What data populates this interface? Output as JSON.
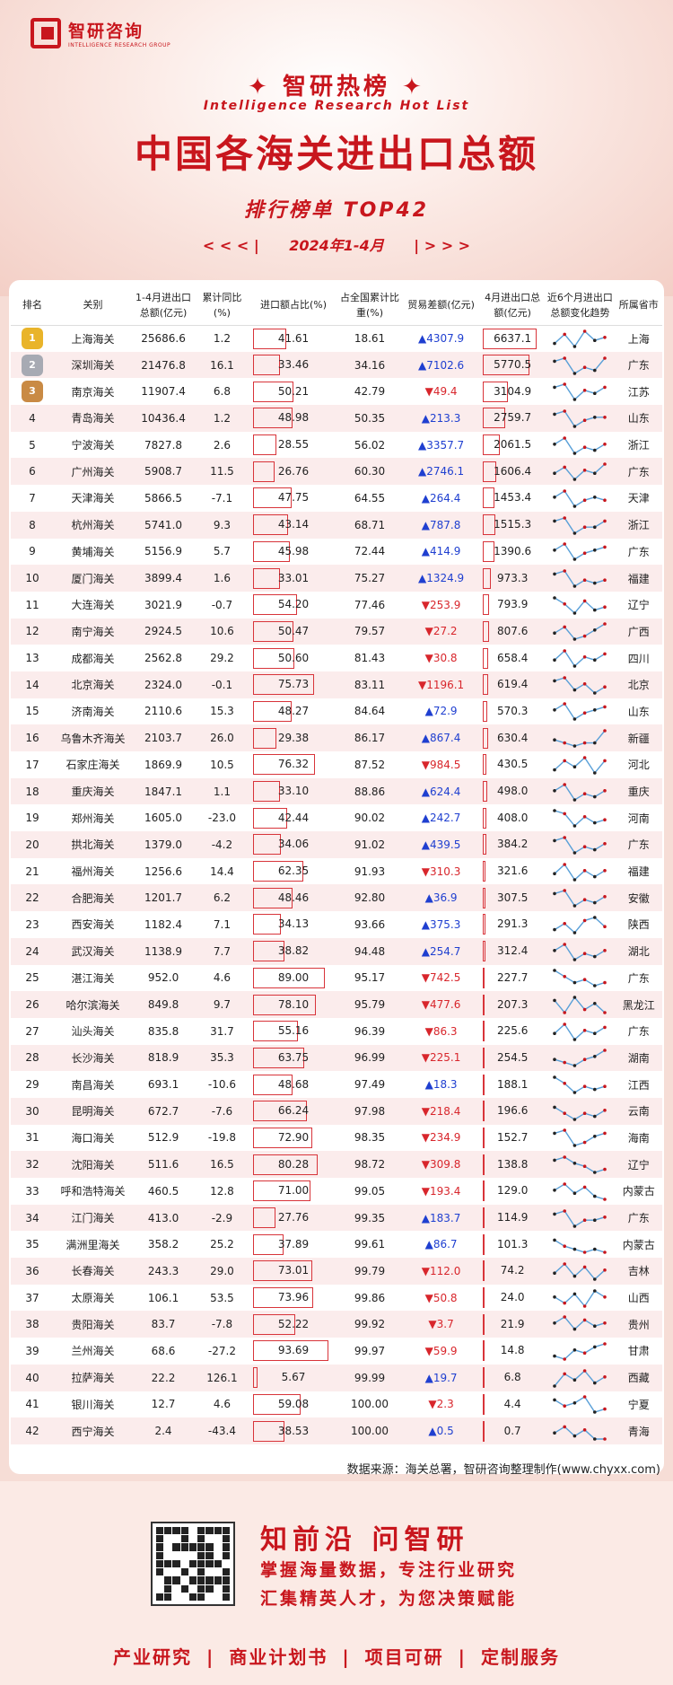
{
  "brand": {
    "name_cn": "智研咨询",
    "name_en": "INTELLIGENCE RESEARCH GROUP"
  },
  "header": {
    "hot_list": "✦ 智研热榜 ✦",
    "hot_list_en": "Intelligence Research Hot List",
    "title": "中国各海关进出口总额",
    "subtitle": "排行榜单  TOP42",
    "prev": "< < <  |",
    "period": "2024年1-4月",
    "next": "|  > > >"
  },
  "table": {
    "headers": [
      "排名",
      "关别",
      "1-4月进出口总额(亿元)",
      "累计同比(%)",
      "进口额占比(%)",
      "占全国累计比重(%)",
      "贸易差额(亿元)",
      "4月进出口总额(亿元)",
      "近6个月进出口总额变化趋势",
      "所属省市"
    ],
    "rows": [
      {
        "rank": "1",
        "name": "上海海关",
        "total": "25686.6",
        "yoy": "1.2",
        "imp": "41.61",
        "share": "18.61",
        "bal": "▲4307.9",
        "apr": "6637.1",
        "prov": "上海",
        "trend": [
          2,
          5,
          1,
          6,
          3,
          4
        ]
      },
      {
        "rank": "2",
        "name": "深圳海关",
        "total": "21476.8",
        "yoy": "16.1",
        "imp": "33.46",
        "share": "34.16",
        "bal": "▲7102.6",
        "apr": "5770.5",
        "prov": "广东",
        "trend": [
          5,
          6,
          1,
          3,
          2,
          6
        ]
      },
      {
        "rank": "3",
        "name": "南京海关",
        "total": "11907.4",
        "yoy": "6.8",
        "imp": "50.21",
        "share": "42.79",
        "bal": "▼49.4",
        "apr": "3104.9",
        "prov": "江苏",
        "trend": [
          5,
          6,
          1,
          4,
          3,
          5
        ]
      },
      {
        "rank": "4",
        "name": "青岛海关",
        "total": "10436.4",
        "yoy": "1.2",
        "imp": "48.98",
        "share": "50.35",
        "bal": "▲213.3",
        "apr": "2759.7",
        "prov": "山东",
        "trend": [
          5,
          6,
          1,
          3,
          4,
          4
        ]
      },
      {
        "rank": "5",
        "name": "宁波海关",
        "total": "7827.8",
        "yoy": "2.6",
        "imp": "28.55",
        "share": "56.02",
        "bal": "▲3357.7",
        "apr": "2061.5",
        "prov": "浙江",
        "trend": [
          4,
          6,
          1,
          3,
          2,
          4
        ]
      },
      {
        "rank": "6",
        "name": "广州海关",
        "total": "5908.7",
        "yoy": "11.5",
        "imp": "26.76",
        "share": "60.30",
        "bal": "▲2746.1",
        "apr": "1606.4",
        "prov": "广东",
        "trend": [
          3,
          5,
          1,
          4,
          3,
          6
        ]
      },
      {
        "rank": "7",
        "name": "天津海关",
        "total": "5866.5",
        "yoy": "-7.1",
        "imp": "47.75",
        "share": "64.55",
        "bal": "▲264.4",
        "apr": "1453.4",
        "prov": "天津",
        "trend": [
          4,
          6,
          1,
          3,
          4,
          3
        ]
      },
      {
        "rank": "8",
        "name": "杭州海关",
        "total": "5741.0",
        "yoy": "9.3",
        "imp": "43.14",
        "share": "68.71",
        "bal": "▲787.8",
        "apr": "1515.3",
        "prov": "浙江",
        "trend": [
          5,
          6,
          1,
          3,
          3,
          5
        ]
      },
      {
        "rank": "9",
        "name": "黄埔海关",
        "total": "5156.9",
        "yoy": "5.7",
        "imp": "45.98",
        "share": "72.44",
        "bal": "▲414.9",
        "apr": "1390.6",
        "prov": "广东",
        "trend": [
          4,
          6,
          1,
          3,
          4,
          5
        ]
      },
      {
        "rank": "10",
        "name": "厦门海关",
        "total": "3899.4",
        "yoy": "1.6",
        "imp": "33.01",
        "share": "75.27",
        "bal": "▲1324.9",
        "apr": "973.3",
        "prov": "福建",
        "trend": [
          5,
          6,
          1,
          3,
          2,
          3
        ]
      },
      {
        "rank": "11",
        "name": "大连海关",
        "total": "3021.9",
        "yoy": "-0.7",
        "imp": "54.20",
        "share": "77.46",
        "bal": "▼253.9",
        "apr": "793.9",
        "prov": "辽宁",
        "trend": [
          6,
          4,
          1,
          5,
          2,
          3
        ]
      },
      {
        "rank": "12",
        "name": "南宁海关",
        "total": "2924.5",
        "yoy": "10.6",
        "imp": "50.47",
        "share": "79.57",
        "bal": "▼27.2",
        "apr": "807.6",
        "prov": "广西",
        "trend": [
          3,
          5,
          1,
          2,
          4,
          6
        ]
      },
      {
        "rank": "13",
        "name": "成都海关",
        "total": "2562.8",
        "yoy": "29.2",
        "imp": "50.60",
        "share": "81.43",
        "bal": "▼30.8",
        "apr": "658.4",
        "prov": "四川",
        "trend": [
          3,
          6,
          1,
          4,
          3,
          5
        ]
      },
      {
        "rank": "14",
        "name": "北京海关",
        "total": "2324.0",
        "yoy": "-0.1",
        "imp": "75.73",
        "share": "83.11",
        "bal": "▼1196.1",
        "apr": "619.4",
        "prov": "北京",
        "trend": [
          5,
          6,
          2,
          4,
          1,
          3
        ]
      },
      {
        "rank": "15",
        "name": "济南海关",
        "total": "2110.6",
        "yoy": "15.3",
        "imp": "48.27",
        "share": "84.64",
        "bal": "▲72.9",
        "apr": "570.3",
        "prov": "山东",
        "trend": [
          4,
          6,
          1,
          3,
          4,
          5
        ]
      },
      {
        "rank": "16",
        "name": "乌鲁木齐海关",
        "total": "2103.7",
        "yoy": "26.0",
        "imp": "29.38",
        "share": "86.17",
        "bal": "▲867.4",
        "apr": "630.4",
        "prov": "新疆",
        "trend": [
          3,
          2,
          1,
          2,
          2,
          6
        ]
      },
      {
        "rank": "17",
        "name": "石家庄海关",
        "total": "1869.9",
        "yoy": "10.5",
        "imp": "76.32",
        "share": "87.52",
        "bal": "▼984.5",
        "apr": "430.5",
        "prov": "河北",
        "trend": [
          2,
          5,
          3,
          6,
          1,
          5
        ]
      },
      {
        "rank": "18",
        "name": "重庆海关",
        "total": "1847.1",
        "yoy": "1.1",
        "imp": "33.10",
        "share": "88.86",
        "bal": "▲624.4",
        "apr": "498.0",
        "prov": "重庆",
        "trend": [
          4,
          6,
          1,
          3,
          2,
          4
        ]
      },
      {
        "rank": "19",
        "name": "郑州海关",
        "total": "1605.0",
        "yoy": "-23.0",
        "imp": "42.44",
        "share": "90.02",
        "bal": "▲242.7",
        "apr": "408.0",
        "prov": "河南",
        "trend": [
          6,
          5,
          1,
          4,
          2,
          3
        ]
      },
      {
        "rank": "20",
        "name": "拱北海关",
        "total": "1379.0",
        "yoy": "-4.2",
        "imp": "34.06",
        "share": "91.02",
        "bal": "▲439.5",
        "apr": "384.2",
        "prov": "广东",
        "trend": [
          5,
          6,
          1,
          3,
          2,
          4
        ]
      },
      {
        "rank": "21",
        "name": "福州海关",
        "total": "1256.6",
        "yoy": "14.4",
        "imp": "62.35",
        "share": "91.93",
        "bal": "▼310.3",
        "apr": "321.6",
        "prov": "福建",
        "trend": [
          3,
          6,
          1,
          4,
          2,
          4
        ]
      },
      {
        "rank": "22",
        "name": "合肥海关",
        "total": "1201.7",
        "yoy": "6.2",
        "imp": "48.46",
        "share": "92.80",
        "bal": "▲36.9",
        "apr": "307.5",
        "prov": "安徽",
        "trend": [
          5,
          6,
          1,
          3,
          2,
          4
        ]
      },
      {
        "rank": "23",
        "name": "西安海关",
        "total": "1182.4",
        "yoy": "7.1",
        "imp": "34.13",
        "share": "93.66",
        "bal": "▲375.3",
        "apr": "291.3",
        "prov": "陕西",
        "trend": [
          2,
          4,
          1,
          5,
          6,
          3
        ]
      },
      {
        "rank": "24",
        "name": "武汉海关",
        "total": "1138.9",
        "yoy": "7.7",
        "imp": "38.82",
        "share": "94.48",
        "bal": "▲254.7",
        "apr": "312.4",
        "prov": "湖北",
        "trend": [
          4,
          6,
          1,
          3,
          2,
          4
        ]
      },
      {
        "rank": "25",
        "name": "湛江海关",
        "total": "952.0",
        "yoy": "4.6",
        "imp": "89.00",
        "share": "95.17",
        "bal": "▼742.5",
        "apr": "227.7",
        "prov": "广东",
        "trend": [
          6,
          4,
          2,
          3,
          1,
          2
        ]
      },
      {
        "rank": "26",
        "name": "哈尔滨海关",
        "total": "849.8",
        "yoy": "9.7",
        "imp": "78.10",
        "share": "95.79",
        "bal": "▼477.6",
        "apr": "207.3",
        "prov": "黑龙江",
        "trend": [
          5,
          1,
          6,
          2,
          4,
          1
        ]
      },
      {
        "rank": "27",
        "name": "汕头海关",
        "total": "835.8",
        "yoy": "31.7",
        "imp": "55.16",
        "share": "96.39",
        "bal": "▼86.3",
        "apr": "225.6",
        "prov": "广东",
        "trend": [
          3,
          6,
          1,
          4,
          3,
          5
        ]
      },
      {
        "rank": "28",
        "name": "长沙海关",
        "total": "818.9",
        "yoy": "35.3",
        "imp": "63.75",
        "share": "96.99",
        "bal": "▼225.1",
        "apr": "254.5",
        "prov": "湖南",
        "trend": [
          3,
          2,
          1,
          3,
          4,
          6
        ]
      },
      {
        "rank": "29",
        "name": "南昌海关",
        "total": "693.1",
        "yoy": "-10.6",
        "imp": "48.68",
        "share": "97.49",
        "bal": "▲18.3",
        "apr": "188.1",
        "prov": "江西",
        "trend": [
          6,
          4,
          1,
          3,
          2,
          3
        ]
      },
      {
        "rank": "30",
        "name": "昆明海关",
        "total": "672.7",
        "yoy": "-7.6",
        "imp": "66.24",
        "share": "97.98",
        "bal": "▼218.4",
        "apr": "196.6",
        "prov": "云南",
        "trend": [
          5,
          3,
          1,
          3,
          2,
          4
        ]
      },
      {
        "rank": "31",
        "name": "海口海关",
        "total": "512.9",
        "yoy": "-19.8",
        "imp": "72.90",
        "share": "98.35",
        "bal": "▼234.9",
        "apr": "152.7",
        "prov": "海南",
        "trend": [
          5,
          6,
          1,
          2,
          4,
          5
        ]
      },
      {
        "rank": "32",
        "name": "沈阳海关",
        "total": "511.6",
        "yoy": "16.5",
        "imp": "80.28",
        "share": "98.72",
        "bal": "▼309.8",
        "apr": "138.8",
        "prov": "辽宁",
        "trend": [
          5,
          6,
          4,
          3,
          1,
          2
        ]
      },
      {
        "rank": "33",
        "name": "呼和浩特海关",
        "total": "460.5",
        "yoy": "12.8",
        "imp": "71.00",
        "share": "99.05",
        "bal": "▼193.4",
        "apr": "129.0",
        "prov": "内蒙古",
        "trend": [
          4,
          6,
          3,
          5,
          2,
          1
        ]
      },
      {
        "rank": "34",
        "name": "江门海关",
        "total": "413.0",
        "yoy": "-2.9",
        "imp": "27.76",
        "share": "99.35",
        "bal": "▲183.7",
        "apr": "114.9",
        "prov": "广东",
        "trend": [
          5,
          6,
          1,
          3,
          3,
          4
        ]
      },
      {
        "rank": "35",
        "name": "满洲里海关",
        "total": "358.2",
        "yoy": "25.2",
        "imp": "37.89",
        "share": "99.61",
        "bal": "▲86.7",
        "apr": "101.3",
        "prov": "内蒙古",
        "trend": [
          5,
          3,
          2,
          1,
          2,
          1
        ]
      },
      {
        "rank": "36",
        "name": "长春海关",
        "total": "243.3",
        "yoy": "29.0",
        "imp": "73.01",
        "share": "99.79",
        "bal": "▼112.0",
        "apr": "74.2",
        "prov": "吉林",
        "trend": [
          3,
          6,
          2,
          5,
          1,
          4
        ]
      },
      {
        "rank": "37",
        "name": "太原海关",
        "total": "106.1",
        "yoy": "53.5",
        "imp": "73.96",
        "share": "99.86",
        "bal": "▼50.8",
        "apr": "24.0",
        "prov": "山西",
        "trend": [
          4,
          2,
          5,
          1,
          6,
          4
        ]
      },
      {
        "rank": "38",
        "name": "贵阳海关",
        "total": "83.7",
        "yoy": "-7.8",
        "imp": "52.22",
        "share": "99.92",
        "bal": "▼3.7",
        "apr": "21.9",
        "prov": "贵州",
        "trend": [
          4,
          6,
          2,
          5,
          3,
          4
        ]
      },
      {
        "rank": "39",
        "name": "兰州海关",
        "total": "68.6",
        "yoy": "-27.2",
        "imp": "93.69",
        "share": "99.97",
        "bal": "▼59.9",
        "apr": "14.8",
        "prov": "甘肃",
        "trend": [
          2,
          1,
          4,
          3,
          5,
          6
        ]
      },
      {
        "rank": "40",
        "name": "拉萨海关",
        "total": "22.2",
        "yoy": "126.1",
        "imp": "5.67",
        "share": "99.99",
        "bal": "▲19.7",
        "apr": "6.8",
        "prov": "西藏",
        "trend": [
          1,
          5,
          3,
          6,
          2,
          4
        ]
      },
      {
        "rank": "41",
        "name": "银川海关",
        "total": "12.7",
        "yoy": "4.6",
        "imp": "59.08",
        "share": "100.00",
        "bal": "▼2.3",
        "apr": "4.4",
        "prov": "宁夏",
        "trend": [
          5,
          3,
          4,
          6,
          1,
          2
        ]
      },
      {
        "rank": "42",
        "name": "西宁海关",
        "total": "2.4",
        "yoy": "-43.4",
        "imp": "38.53",
        "share": "100.00",
        "bal": "▲0.5",
        "apr": "0.7",
        "prov": "青海",
        "trend": [
          3,
          5,
          2,
          4,
          1,
          1
        ]
      }
    ]
  },
  "source": "数据来源：海关总署，智研咨询整理制作(www.chyxx.com)",
  "footer": {
    "slogan1": "知前沿 问智研",
    "slogan2": "掌握海量数据，专注行业研究",
    "slogan3": "汇集精英人才，为您决策赋能",
    "services": [
      "产业研究",
      "商业计划书",
      "项目可研",
      "定制服务"
    ],
    "sep": "|"
  },
  "colors": {
    "brand": "#c8161d",
    "up": "#1f3fd0",
    "down": "#d8262c"
  }
}
